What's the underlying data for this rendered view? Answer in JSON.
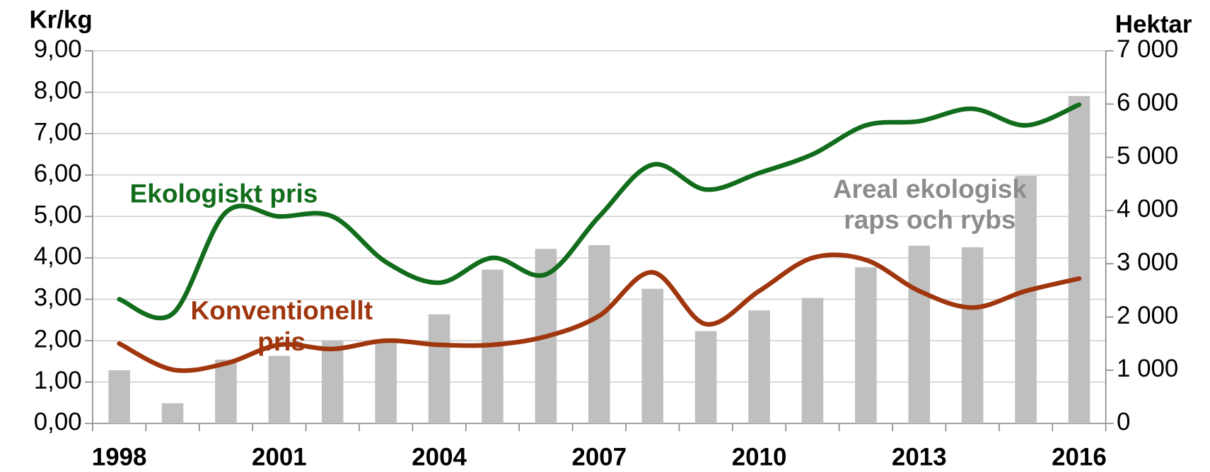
{
  "chart_data": {
    "type": "combo",
    "y_label": "Kr/kg",
    "y2_label": "Hektar",
    "categories": [
      "1998",
      null,
      null,
      "2001",
      null,
      null,
      "2004",
      null,
      null,
      "2007",
      null,
      null,
      "2010",
      null,
      null,
      "2013",
      null,
      null,
      "2016"
    ],
    "series": [
      {
        "name": "Areal ekologisk raps och rybs",
        "type": "bar",
        "axis": "y2",
        "color": "#bfbfbf",
        "values": [
          1000,
          380,
          1200,
          1270,
          1560,
          1550,
          2050,
          2890,
          3280,
          3350,
          2530,
          1735,
          2125,
          2360,
          2935,
          3340,
          3310,
          4650,
          6150
        ]
      },
      {
        "name": "Ekologiskt pris",
        "type": "line",
        "color": "#116d1b",
        "values": [
          3.0,
          2.65,
          5.1,
          5.0,
          5.0,
          3.9,
          3.4,
          4.0,
          3.6,
          5.0,
          6.25,
          5.65,
          6.05,
          6.5,
          7.2,
          7.3,
          7.6,
          7.2,
          7.7
        ]
      },
      {
        "name": "Konventionellt pris",
        "type": "line",
        "color": "#a0360e",
        "values": [
          1.93,
          1.3,
          1.45,
          1.9,
          1.8,
          2.0,
          1.9,
          1.9,
          2.1,
          2.6,
          3.65,
          2.4,
          3.2,
          4.0,
          3.95,
          3.2,
          2.8,
          3.2,
          3.5
        ]
      }
    ],
    "ylim": [
      0,
      9
    ],
    "yticks": [
      {
        "value": 0,
        "label": "0,00"
      },
      {
        "value": 1,
        "label": "1,00"
      },
      {
        "value": 2,
        "label": "2,00"
      },
      {
        "value": 3,
        "label": "3,00"
      },
      {
        "value": 4,
        "label": "4,00"
      },
      {
        "value": 5,
        "label": "5,00"
      },
      {
        "value": 6,
        "label": "6,00"
      },
      {
        "value": 7,
        "label": "7,00"
      },
      {
        "value": 8,
        "label": "8,00"
      },
      {
        "value": 9,
        "label": "9,00"
      }
    ],
    "y2lim": [
      0,
      7000
    ],
    "y2ticks": [
      0,
      {
        "value": 1000,
        "label": "1 000"
      },
      {
        "value": 2000,
        "label": "2 000"
      },
      {
        "value": 3000,
        "label": "3 000"
      },
      {
        "value": 4000,
        "label": "4 000"
      },
      {
        "value": 5000,
        "label": "5 000"
      },
      {
        "value": 6000,
        "label": "6 000"
      },
      {
        "value": 7000,
        "label": "7 000"
      }
    ],
    "grid": true
  }
}
